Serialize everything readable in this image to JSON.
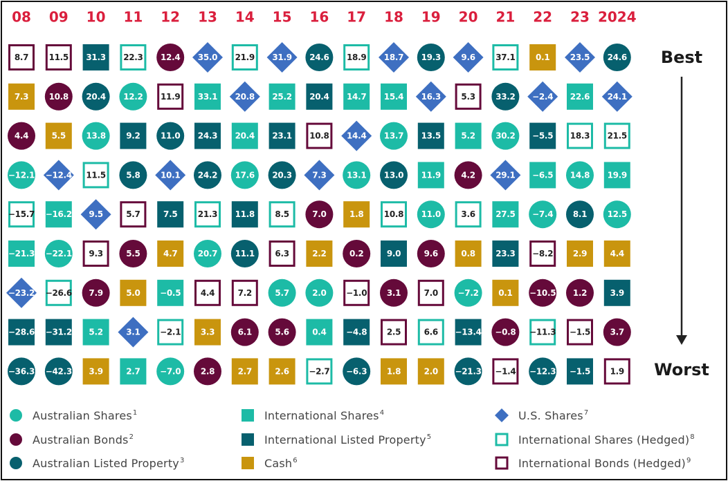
{
  "chart_data": {
    "type": "table",
    "title": "",
    "rank_labels": {
      "best": "Best",
      "worst": "Worst"
    },
    "years": [
      "08",
      "09",
      "10",
      "11",
      "12",
      "13",
      "14",
      "15",
      "16",
      "17",
      "18",
      "19",
      "20",
      "21",
      "22",
      "23",
      "2024"
    ],
    "columns": [
      {
        "year": "08",
        "cells": [
          {
            "asset": "intl_bonds_hedged",
            "label": "8.7"
          },
          {
            "asset": "cash",
            "label": "7.3"
          },
          {
            "asset": "aus_bonds",
            "label": "4.4"
          },
          {
            "asset": "aus_shares",
            "label": "-12.1"
          },
          {
            "asset": "intl_shares_hedged",
            "label": "-15.7"
          },
          {
            "asset": "intl_shares",
            "label": "-21.3"
          },
          {
            "asset": "us_shares",
            "label": "-23.2"
          },
          {
            "asset": "intl_listed_property",
            "label": "-28.6"
          },
          {
            "asset": "aus_listed_property",
            "label": "-36.3"
          }
        ]
      },
      {
        "year": "09",
        "cells": [
          {
            "asset": "intl_bonds_hedged",
            "label": "11.5"
          },
          {
            "asset": "aus_bonds",
            "label": "10.8"
          },
          {
            "asset": "cash",
            "label": "5.5"
          },
          {
            "asset": "us_shares",
            "label": "-12.4"
          },
          {
            "asset": "intl_shares",
            "label": "-16.2"
          },
          {
            "asset": "aus_shares",
            "label": "-22.1"
          },
          {
            "asset": "intl_shares_hedged",
            "label": "-26.6"
          },
          {
            "asset": "intl_listed_property",
            "label": "-31.2"
          },
          {
            "asset": "aus_listed_property",
            "label": "-42.3"
          }
        ]
      },
      {
        "year": "10",
        "cells": [
          {
            "asset": "intl_listed_property",
            "label": "31.3"
          },
          {
            "asset": "aus_listed_property",
            "label": "20.4"
          },
          {
            "asset": "aus_shares",
            "label": "13.8"
          },
          {
            "asset": "intl_shares_hedged",
            "label": "11.5"
          },
          {
            "asset": "us_shares",
            "label": "9.5"
          },
          {
            "asset": "intl_bonds_hedged",
            "label": "9.3"
          },
          {
            "asset": "aus_bonds",
            "label": "7.9"
          },
          {
            "asset": "intl_shares",
            "label": "5.2"
          },
          {
            "asset": "cash",
            "label": "3.9"
          }
        ]
      },
      {
        "year": "11",
        "cells": [
          {
            "asset": "intl_shares_hedged",
            "label": "22.3"
          },
          {
            "asset": "aus_shares",
            "label": "12.2"
          },
          {
            "asset": "intl_listed_property",
            "label": "9.2"
          },
          {
            "asset": "aus_listed_property",
            "label": "5.8"
          },
          {
            "asset": "intl_bonds_hedged",
            "label": "5.7"
          },
          {
            "asset": "aus_bonds",
            "label": "5.5"
          },
          {
            "asset": "cash",
            "label": "5.0"
          },
          {
            "asset": "us_shares",
            "label": "3.1"
          },
          {
            "asset": "intl_shares",
            "label": "2.7"
          }
        ]
      },
      {
        "year": "12",
        "cells": [
          {
            "asset": "aus_bonds",
            "label": "12.4"
          },
          {
            "asset": "intl_bonds_hedged",
            "label": "11.9"
          },
          {
            "asset": "aus_listed_property",
            "label": "11.0"
          },
          {
            "asset": "us_shares",
            "label": "10.1"
          },
          {
            "asset": "intl_listed_property",
            "label": "7.5"
          },
          {
            "asset": "cash",
            "label": "4.7"
          },
          {
            "asset": "intl_shares",
            "label": "-0.5"
          },
          {
            "asset": "intl_shares_hedged",
            "label": "-2.1"
          },
          {
            "asset": "aus_shares",
            "label": "-7.0"
          }
        ]
      },
      {
        "year": "13",
        "cells": [
          {
            "asset": "us_shares",
            "label": "35.0"
          },
          {
            "asset": "intl_shares",
            "label": "33.1"
          },
          {
            "asset": "intl_listed_property",
            "label": "24.3"
          },
          {
            "asset": "aus_listed_property",
            "label": "24.2"
          },
          {
            "asset": "intl_shares_hedged",
            "label": "21.3"
          },
          {
            "asset": "aus_shares",
            "label": "20.7"
          },
          {
            "asset": "intl_bonds_hedged",
            "label": "4.4"
          },
          {
            "asset": "cash",
            "label": "3.3"
          },
          {
            "asset": "aus_bonds",
            "label": "2.8"
          }
        ]
      },
      {
        "year": "14",
        "cells": [
          {
            "asset": "intl_shares_hedged",
            "label": "21.9"
          },
          {
            "asset": "us_shares",
            "label": "20.8"
          },
          {
            "asset": "intl_shares",
            "label": "20.4"
          },
          {
            "asset": "aus_shares",
            "label": "17.6"
          },
          {
            "asset": "intl_listed_property",
            "label": "11.8"
          },
          {
            "asset": "aus_listed_property",
            "label": "11.1"
          },
          {
            "asset": "intl_bonds_hedged",
            "label": "7.2"
          },
          {
            "asset": "aus_bonds",
            "label": "6.1"
          },
          {
            "asset": "cash",
            "label": "2.7"
          }
        ]
      },
      {
        "year": "15",
        "cells": [
          {
            "asset": "us_shares",
            "label": "31.9"
          },
          {
            "asset": "intl_shares",
            "label": "25.2"
          },
          {
            "asset": "intl_listed_property",
            "label": "23.1"
          },
          {
            "asset": "aus_listed_property",
            "label": "20.3"
          },
          {
            "asset": "intl_shares_hedged",
            "label": "8.5"
          },
          {
            "asset": "intl_bonds_hedged",
            "label": "6.3"
          },
          {
            "asset": "aus_shares",
            "label": "5.7"
          },
          {
            "asset": "aus_bonds",
            "label": "5.6"
          },
          {
            "asset": "cash",
            "label": "2.6"
          }
        ]
      },
      {
        "year": "16",
        "cells": [
          {
            "asset": "aus_listed_property",
            "label": "24.6"
          },
          {
            "asset": "intl_listed_property",
            "label": "20.4"
          },
          {
            "asset": "intl_bonds_hedged",
            "label": "10.8"
          },
          {
            "asset": "us_shares",
            "label": "7.3"
          },
          {
            "asset": "aus_bonds",
            "label": "7.0"
          },
          {
            "asset": "cash",
            "label": "2.2"
          },
          {
            "asset": "aus_shares",
            "label": "2.0"
          },
          {
            "asset": "intl_shares",
            "label": "0.4"
          },
          {
            "asset": "intl_shares_hedged",
            "label": "-2.7"
          }
        ]
      },
      {
        "year": "17",
        "cells": [
          {
            "asset": "intl_shares_hedged",
            "label": "18.9"
          },
          {
            "asset": "intl_shares",
            "label": "14.7"
          },
          {
            "asset": "us_shares",
            "label": "14.4"
          },
          {
            "asset": "aus_shares",
            "label": "13.1"
          },
          {
            "asset": "cash",
            "label": "1.8"
          },
          {
            "asset": "aus_bonds",
            "label": "0.2"
          },
          {
            "asset": "intl_bonds_hedged",
            "label": "-1.0"
          },
          {
            "asset": "intl_listed_property",
            "label": "-4.8"
          },
          {
            "asset": "aus_listed_property",
            "label": "-6.3"
          }
        ]
      },
      {
        "year": "18",
        "cells": [
          {
            "asset": "us_shares",
            "label": "18.7"
          },
          {
            "asset": "intl_shares",
            "label": "15.4"
          },
          {
            "asset": "aus_shares",
            "label": "13.7"
          },
          {
            "asset": "aus_listed_property",
            "label": "13.0"
          },
          {
            "asset": "intl_shares_hedged",
            "label": "10.8"
          },
          {
            "asset": "intl_listed_property",
            "label": "9.0"
          },
          {
            "asset": "aus_bonds",
            "label": "3.1"
          },
          {
            "asset": "intl_bonds_hedged",
            "label": "2.5"
          },
          {
            "asset": "cash",
            "label": "1.8"
          }
        ]
      },
      {
        "year": "19",
        "cells": [
          {
            "asset": "aus_listed_property",
            "label": "19.3"
          },
          {
            "asset": "us_shares",
            "label": "16.3"
          },
          {
            "asset": "intl_listed_property",
            "label": "13.5"
          },
          {
            "asset": "intl_shares",
            "label": "11.9"
          },
          {
            "asset": "aus_shares",
            "label": "11.0"
          },
          {
            "asset": "aus_bonds",
            "label": "9.6"
          },
          {
            "asset": "intl_bonds_hedged",
            "label": "7.0"
          },
          {
            "asset": "intl_shares_hedged",
            "label": "6.6"
          },
          {
            "asset": "cash",
            "label": "2.0"
          }
        ]
      },
      {
        "year": "20",
        "cells": [
          {
            "asset": "us_shares",
            "label": "9.6"
          },
          {
            "asset": "intl_bonds_hedged",
            "label": "5.3"
          },
          {
            "asset": "intl_shares",
            "label": "5.2"
          },
          {
            "asset": "aus_bonds",
            "label": "4.2"
          },
          {
            "asset": "intl_shares_hedged",
            "label": "3.6"
          },
          {
            "asset": "cash",
            "label": "0.8"
          },
          {
            "asset": "aus_shares",
            "label": "-7.2"
          },
          {
            "asset": "intl_listed_property",
            "label": "-13.4"
          },
          {
            "asset": "aus_listed_property",
            "label": "-21.3"
          }
        ]
      },
      {
        "year": "21",
        "cells": [
          {
            "asset": "intl_shares_hedged",
            "label": "37.1"
          },
          {
            "asset": "aus_listed_property",
            "label": "33.2"
          },
          {
            "asset": "aus_shares",
            "label": "30.2"
          },
          {
            "asset": "us_shares",
            "label": "29.1"
          },
          {
            "asset": "intl_shares",
            "label": "27.5"
          },
          {
            "asset": "intl_listed_property",
            "label": "23.3"
          },
          {
            "asset": "cash",
            "label": "0.1"
          },
          {
            "asset": "aus_bonds",
            "label": "-0.8"
          },
          {
            "asset": "intl_bonds_hedged",
            "label": "-1.4"
          }
        ]
      },
      {
        "year": "22",
        "cells": [
          {
            "asset": "cash",
            "label": "0.1"
          },
          {
            "asset": "us_shares",
            "label": "-2.4"
          },
          {
            "asset": "intl_listed_property",
            "label": "-5.5"
          },
          {
            "asset": "intl_shares",
            "label": "-6.5"
          },
          {
            "asset": "aus_shares",
            "label": "-7.4"
          },
          {
            "asset": "intl_bonds_hedged",
            "label": "-8.2"
          },
          {
            "asset": "aus_bonds",
            "label": "-10.5"
          },
          {
            "asset": "intl_shares_hedged",
            "label": "-11.3"
          },
          {
            "asset": "aus_listed_property",
            "label": "-12.3"
          }
        ]
      },
      {
        "year": "23",
        "cells": [
          {
            "asset": "us_shares",
            "label": "23.5"
          },
          {
            "asset": "intl_shares",
            "label": "22.6"
          },
          {
            "asset": "intl_shares_hedged",
            "label": "18.3"
          },
          {
            "asset": "aus_shares",
            "label": "14.8"
          },
          {
            "asset": "aus_listed_property",
            "label": "8.1"
          },
          {
            "asset": "cash",
            "label": "2.9"
          },
          {
            "asset": "aus_bonds",
            "label": "1.2"
          },
          {
            "asset": "intl_bonds_hedged",
            "label": "-1.5"
          },
          {
            "asset": "intl_listed_property",
            "label": "-1.5"
          }
        ]
      },
      {
        "year": "2024",
        "cells": [
          {
            "asset": "aus_listed_property",
            "label": "24.6"
          },
          {
            "asset": "us_shares",
            "label": "24.1"
          },
          {
            "asset": "intl_shares_hedged",
            "label": "21.5"
          },
          {
            "asset": "intl_shares",
            "label": "19.9"
          },
          {
            "asset": "aus_shares",
            "label": "12.5"
          },
          {
            "asset": "cash",
            "label": "4.4"
          },
          {
            "asset": "intl_listed_property",
            "label": "3.9"
          },
          {
            "asset": "aus_bonds",
            "label": "3.7"
          },
          {
            "asset": "intl_bonds_hedged",
            "label": "1.9"
          }
        ]
      }
    ],
    "legend": [
      {
        "key": "aus_shares",
        "label": "Australian Shares",
        "note": "1",
        "shape": "circle",
        "fill": "#1DBBA6",
        "text_color": "#ffffff"
      },
      {
        "key": "aus_bonds",
        "label": "Australian Bonds",
        "note": "2",
        "shape": "circle",
        "fill": "#650A3A",
        "text_color": "#ffffff"
      },
      {
        "key": "aus_listed_property",
        "label": "Australian Listed Property",
        "note": "3",
        "shape": "circle",
        "fill": "#07606E",
        "text_color": "#ffffff"
      },
      {
        "key": "intl_shares",
        "label": "International Shares",
        "note": "4",
        "shape": "square",
        "fill": "#1DBBA6",
        "text_color": "#ffffff"
      },
      {
        "key": "intl_listed_property",
        "label": "International Listed Property",
        "note": "5",
        "shape": "square",
        "fill": "#07606E",
        "text_color": "#ffffff"
      },
      {
        "key": "cash",
        "label": "Cash",
        "note": "6",
        "shape": "square",
        "fill": "#C9950E",
        "text_color": "#ffffff"
      },
      {
        "key": "us_shares",
        "label": "U.S. Shares",
        "note": "7",
        "shape": "diamond",
        "fill": "#3E6FC1",
        "text_color": "#ffffff"
      },
      {
        "key": "intl_shares_hedged",
        "label": "International Shares (Hedged)",
        "note": "8",
        "shape": "square-outline",
        "fill": "#1DBBA6",
        "text_color": "#222222"
      },
      {
        "key": "intl_bonds_hedged",
        "label": "International Bonds (Hedged)",
        "note": "9",
        "shape": "square-outline",
        "fill": "#650A3A",
        "text_color": "#222222"
      }
    ],
    "colors": {
      "year_label": "#DA1F3D",
      "rank_text": "#1a1a1a",
      "arrow": "#222222"
    }
  }
}
